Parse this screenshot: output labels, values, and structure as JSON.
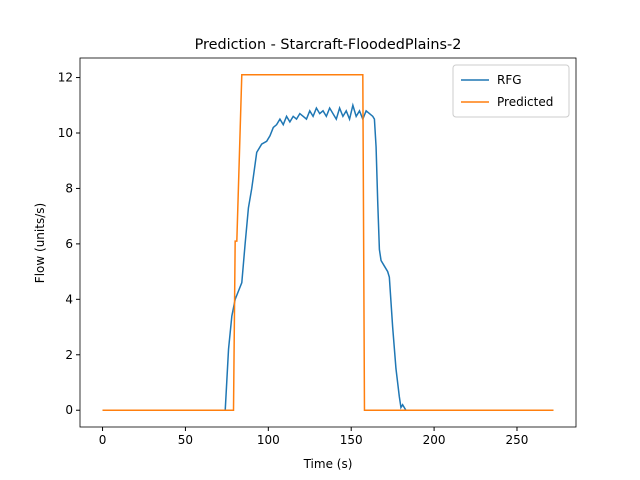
{
  "chart_data": {
    "type": "line",
    "title": "Prediction - Starcraft-FloodedPlains-2",
    "xlabel": "Time (s)",
    "ylabel": "Flow (units/s)",
    "xlim": [
      -13.6,
      285.6
    ],
    "ylim": [
      -0.605,
      12.705
    ],
    "xticks": [
      0,
      50,
      100,
      150,
      200,
      250
    ],
    "yticks": [
      0,
      2,
      4,
      6,
      8,
      10,
      12
    ],
    "legend": "upper right",
    "series": [
      {
        "name": "RFG",
        "color": "#1f77b4",
        "x": [
          0,
          74,
          76,
          78,
          80,
          82,
          84,
          86,
          88,
          90,
          93,
          96,
          99,
          101,
          103,
          105,
          107,
          109,
          111,
          113,
          115,
          117,
          119,
          121,
          123,
          125,
          127,
          129,
          131,
          133,
          135,
          137,
          139,
          141,
          143,
          145,
          147,
          149,
          151,
          153,
          155,
          157,
          159,
          161,
          163,
          164,
          165,
          166,
          167,
          168,
          170,
          172,
          173,
          175,
          177,
          179,
          180,
          181,
          182,
          183,
          272
        ],
        "values": [
          0,
          0,
          2.2,
          3.4,
          4.0,
          4.3,
          4.6,
          6.0,
          7.3,
          8.0,
          9.3,
          9.6,
          9.7,
          9.9,
          10.2,
          10.3,
          10.5,
          10.3,
          10.6,
          10.4,
          10.6,
          10.5,
          10.7,
          10.6,
          10.5,
          10.8,
          10.6,
          10.9,
          10.7,
          10.8,
          10.6,
          10.9,
          10.7,
          10.5,
          10.9,
          10.6,
          10.8,
          10.5,
          11.0,
          10.6,
          10.8,
          10.5,
          10.8,
          10.7,
          10.6,
          10.5,
          9.5,
          7.5,
          5.8,
          5.4,
          5.2,
          5.0,
          4.8,
          3.0,
          1.5,
          0.5,
          0.1,
          0.2,
          0.1,
          0,
          0
        ]
      },
      {
        "name": "Predicted",
        "color": "#ff7f0e",
        "x": [
          0,
          79,
          80,
          81,
          84,
          157,
          158,
          272
        ],
        "values": [
          0,
          0,
          6.1,
          6.1,
          12.1,
          12.1,
          0,
          0
        ]
      }
    ]
  }
}
